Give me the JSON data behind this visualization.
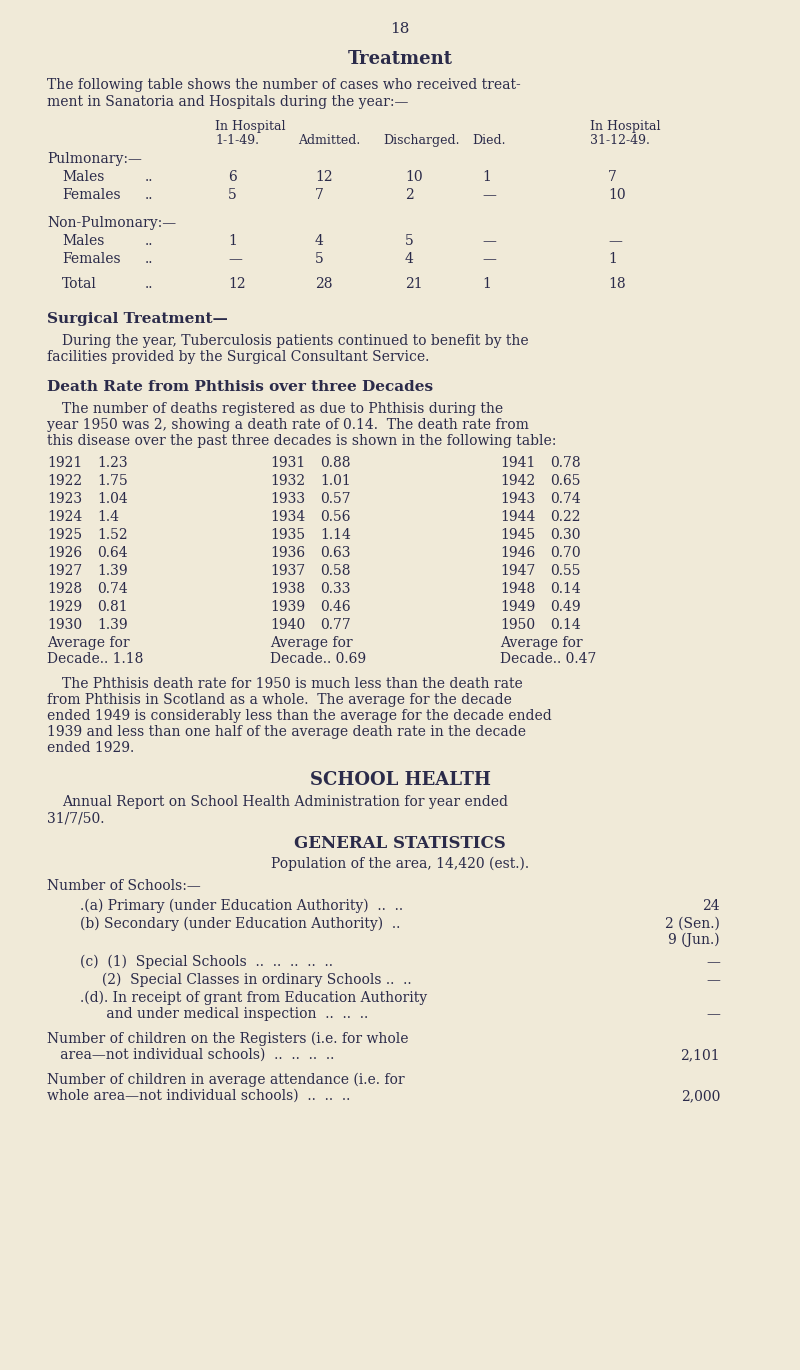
{
  "background_color": "#f0ead8",
  "text_color": "#2b2b4a",
  "page_number": "18",
  "title": "Treatment",
  "intro_text_1": "The following table shows the number of cases who received treat-",
  "intro_text_2": "ment in Sanatoria and Hospitals during the year:—",
  "surgical_title": "Surgical Treatment—",
  "surgical_text_1": "During the year, Tuberculosis patients continued to benefit by the",
  "surgical_text_2": "facilities provided by the Surgical Consultant Service.",
  "death_rate_title": "Death Rate from Phthisis over three Decades",
  "death_rate_intro_1": "The number of deaths registered as due to Phthisis during the",
  "death_rate_intro_2": "year 1950 was 2, showing a death rate of 0.14.  The death rate from",
  "death_rate_intro_3": "this disease over the past three decades is shown in the following table:",
  "decade_rows": [
    [
      "1921",
      "1.23",
      "1931",
      "0.88",
      "1941",
      "0.78"
    ],
    [
      "1922",
      "1.75",
      "1932",
      "1.01",
      "1942",
      "0.65"
    ],
    [
      "1923",
      "1.04",
      "1933",
      "0.57",
      "1943",
      "0.74"
    ],
    [
      "1924",
      "1.4",
      "1934",
      "0.56",
      "1944",
      "0.22"
    ],
    [
      "1925",
      "1.52",
      "1935",
      "1.14",
      "1945",
      "0.30"
    ],
    [
      "1926",
      "0.64",
      "1936",
      "0.63",
      "1946",
      "0.70"
    ],
    [
      "1927",
      "1.39",
      "1937",
      "0.58",
      "1947",
      "0.55"
    ],
    [
      "1928",
      "0.74",
      "1938",
      "0.33",
      "1948",
      "0.14"
    ],
    [
      "1929",
      "0.81",
      "1939",
      "0.46",
      "1949",
      "0.49"
    ],
    [
      "1930",
      "1.39",
      "1940",
      "0.77",
      "1950",
      "0.14"
    ]
  ],
  "avg_label": "Average for",
  "decade_avgs": [
    "Decade.. 1.18",
    "Decade.. 0.69",
    "Decade.. 0.47"
  ],
  "conclusion_1": "The Phthisis death rate for 1950 is much less than the death rate",
  "conclusion_2": "from Phthisis in Scotland as a whole.  The average for the decade",
  "conclusion_3": "ended 1949 is considerably less than the average for the decade ended",
  "conclusion_4": "1939 and less than one half of the average death rate in the decade",
  "conclusion_5": "ended 1929.",
  "school_health_title": "SCHOOL HEALTH",
  "school_report_1": "Annual Report on School Health Administration for year ended",
  "school_report_2": "31/7/50.",
  "general_stats_title": "GENERAL STATISTICS",
  "population_line": "Population of the area, 14,420 (est.).",
  "schools_heading": "Number of Schools:—",
  "school_a_label": ".(a) Primary (under Education Authority)  ..  ..",
  "school_a_value": "24",
  "school_b_label": "(b) Secondary (under Education Authority)  ..",
  "school_b_value1": "2 (Sen.)",
  "school_b_value2": "9 (Jun.)",
  "school_c1_label": "(c)  (1)  Special Schools  ..  ..  ..  ..  ..",
  "school_c1_value": "—",
  "school_c2_label": "     (2)  Special Classes in ordinary Schools ..  ..",
  "school_c2_value": "—",
  "school_d_label1": ".(d). In receipt of grant from Education Authority",
  "school_d_label2": "      and under medical inspection  ..  ..  ..",
  "school_d_value": "—",
  "register_label1": "Number of children on the Registers (i.e. for whole",
  "register_label2": "   area—not individual schools)  ..  ..  ..  ..",
  "register_value": "2,101",
  "attendance_label1": "Number of children in average attendance (i.e. for",
  "attendance_label2": "whole area—not individual schools)  ..  ..  ..",
  "attendance_value": "2,000"
}
